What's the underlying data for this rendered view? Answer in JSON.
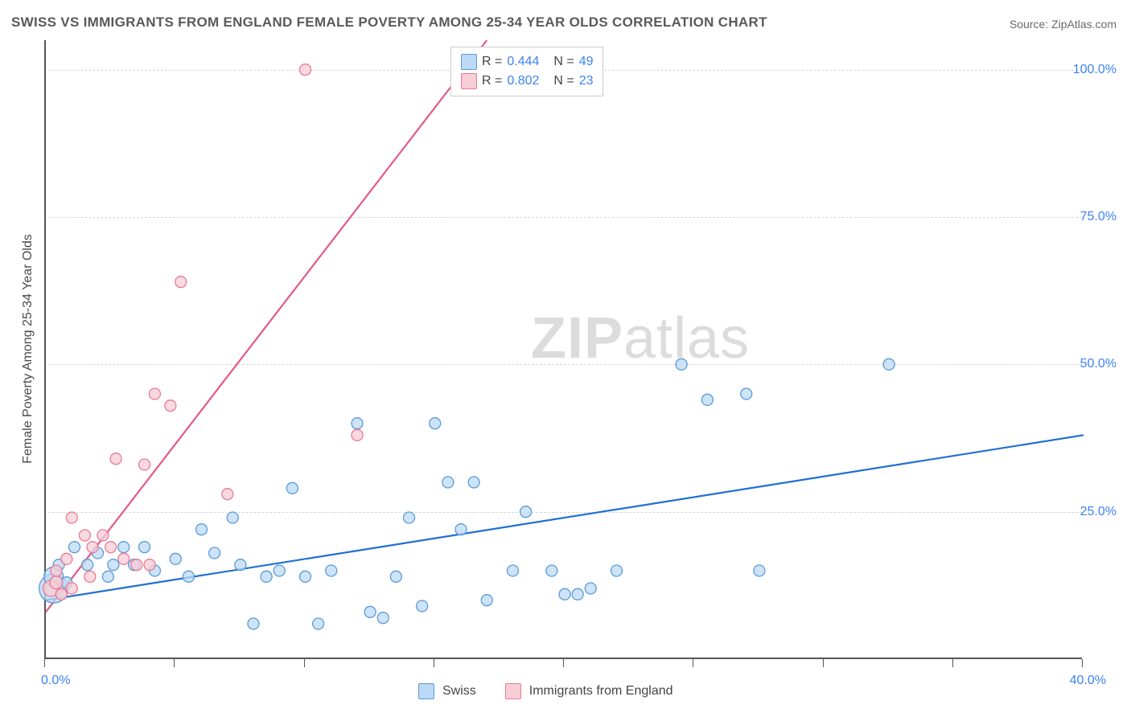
{
  "title": "SWISS VS IMMIGRANTS FROM ENGLAND FEMALE POVERTY AMONG 25-34 YEAR OLDS CORRELATION CHART",
  "source": "Source: ZipAtlas.com",
  "y_axis_label": "Female Poverty Among 25-34 Year Olds",
  "watermark_bold": "ZIP",
  "watermark_light": "atlas",
  "chart": {
    "type": "scatter",
    "xlim": [
      0,
      40
    ],
    "ylim": [
      0,
      105
    ],
    "x_ticks": [
      0,
      5,
      10,
      15,
      20,
      25,
      30,
      35,
      40
    ],
    "x_tick_labels": {
      "0": "0.0%",
      "40": "40.0%"
    },
    "y_ticks": [
      25,
      50,
      75,
      100
    ],
    "y_tick_labels": [
      "25.0%",
      "50.0%",
      "75.0%",
      "100.0%"
    ],
    "background_color": "#ffffff",
    "grid_color": "#d6d6d6",
    "axis_color": "#555555",
    "label_color": "#3b82f6",
    "series": [
      {
        "name": "Swiss",
        "fill": "#bcd9f5",
        "stroke": "#5b9bd5",
        "trend_color": "#1f6fd4",
        "trend": {
          "x1": 0,
          "y1": 10,
          "x2": 40,
          "y2": 38
        },
        "R": "0.444",
        "N": "49",
        "points": [
          {
            "x": 0.3,
            "y": 12,
            "r": 18
          },
          {
            "x": 0.3,
            "y": 14,
            "r": 12
          },
          {
            "x": 0.5,
            "y": 16,
            "r": 7
          },
          {
            "x": 0.8,
            "y": 13,
            "r": 7
          },
          {
            "x": 1.1,
            "y": 19,
            "r": 7
          },
          {
            "x": 1.6,
            "y": 16,
            "r": 7
          },
          {
            "x": 2.0,
            "y": 18,
            "r": 7
          },
          {
            "x": 2.4,
            "y": 14,
            "r": 7
          },
          {
            "x": 2.6,
            "y": 16,
            "r": 7
          },
          {
            "x": 3.0,
            "y": 19,
            "r": 7
          },
          {
            "x": 3.4,
            "y": 16,
            "r": 7
          },
          {
            "x": 3.8,
            "y": 19,
            "r": 7
          },
          {
            "x": 4.2,
            "y": 15,
            "r": 7
          },
          {
            "x": 5.0,
            "y": 17,
            "r": 7
          },
          {
            "x": 5.5,
            "y": 14,
            "r": 7
          },
          {
            "x": 6.0,
            "y": 22,
            "r": 7
          },
          {
            "x": 6.5,
            "y": 18,
            "r": 7
          },
          {
            "x": 7.2,
            "y": 24,
            "r": 7
          },
          {
            "x": 7.5,
            "y": 16,
            "r": 7
          },
          {
            "x": 8.0,
            "y": 6,
            "r": 7
          },
          {
            "x": 8.5,
            "y": 14,
            "r": 7
          },
          {
            "x": 9.0,
            "y": 15,
            "r": 7
          },
          {
            "x": 9.5,
            "y": 29,
            "r": 7
          },
          {
            "x": 10.0,
            "y": 14,
            "r": 7
          },
          {
            "x": 10.5,
            "y": 6,
            "r": 7
          },
          {
            "x": 11.0,
            "y": 15,
            "r": 7
          },
          {
            "x": 12.0,
            "y": 40,
            "r": 7
          },
          {
            "x": 12.5,
            "y": 8,
            "r": 7
          },
          {
            "x": 13.0,
            "y": 7,
            "r": 7
          },
          {
            "x": 13.5,
            "y": 14,
            "r": 7
          },
          {
            "x": 14.0,
            "y": 24,
            "r": 7
          },
          {
            "x": 14.5,
            "y": 9,
            "r": 7
          },
          {
            "x": 15.0,
            "y": 40,
            "r": 7
          },
          {
            "x": 15.5,
            "y": 30,
            "r": 7
          },
          {
            "x": 16.0,
            "y": 22,
            "r": 7
          },
          {
            "x": 16.5,
            "y": 30,
            "r": 7
          },
          {
            "x": 17.0,
            "y": 10,
            "r": 7
          },
          {
            "x": 18.0,
            "y": 15,
            "r": 7
          },
          {
            "x": 18.5,
            "y": 25,
            "r": 7
          },
          {
            "x": 19.5,
            "y": 15,
            "r": 7
          },
          {
            "x": 20.0,
            "y": 11,
            "r": 7
          },
          {
            "x": 20.5,
            "y": 11,
            "r": 7
          },
          {
            "x": 21.0,
            "y": 12,
            "r": 7
          },
          {
            "x": 22.0,
            "y": 15,
            "r": 7
          },
          {
            "x": 24.5,
            "y": 50,
            "r": 7
          },
          {
            "x": 25.5,
            "y": 44,
            "r": 7
          },
          {
            "x": 27.0,
            "y": 45,
            "r": 7
          },
          {
            "x": 27.5,
            "y": 15,
            "r": 7
          },
          {
            "x": 32.5,
            "y": 50,
            "r": 7
          }
        ]
      },
      {
        "name": "Immigrants from England",
        "fill": "#f7cdd6",
        "stroke": "#e97994",
        "trend_color": "#e35a84",
        "trend": {
          "x1": 0,
          "y1": 8,
          "x2": 17,
          "y2": 105
        },
        "R": "0.802",
        "N": "23",
        "points": [
          {
            "x": 0.2,
            "y": 12,
            "r": 10
          },
          {
            "x": 0.4,
            "y": 13,
            "r": 8
          },
          {
            "x": 0.4,
            "y": 15,
            "r": 7
          },
          {
            "x": 0.6,
            "y": 11,
            "r": 7
          },
          {
            "x": 0.8,
            "y": 17,
            "r": 7
          },
          {
            "x": 1.0,
            "y": 12,
            "r": 7
          },
          {
            "x": 1.0,
            "y": 24,
            "r": 7
          },
          {
            "x": 1.5,
            "y": 21,
            "r": 7
          },
          {
            "x": 1.7,
            "y": 14,
            "r": 7
          },
          {
            "x": 1.8,
            "y": 19,
            "r": 7
          },
          {
            "x": 2.2,
            "y": 21,
            "r": 7
          },
          {
            "x": 2.5,
            "y": 19,
            "r": 7
          },
          {
            "x": 2.7,
            "y": 34,
            "r": 7
          },
          {
            "x": 3.0,
            "y": 17,
            "r": 7
          },
          {
            "x": 3.5,
            "y": 16,
            "r": 7
          },
          {
            "x": 3.8,
            "y": 33,
            "r": 7
          },
          {
            "x": 4.0,
            "y": 16,
            "r": 7
          },
          {
            "x": 4.2,
            "y": 45,
            "r": 7
          },
          {
            "x": 4.8,
            "y": 43,
            "r": 7
          },
          {
            "x": 5.2,
            "y": 64,
            "r": 7
          },
          {
            "x": 7.0,
            "y": 28,
            "r": 7
          },
          {
            "x": 10.0,
            "y": 100,
            "r": 7
          },
          {
            "x": 12.0,
            "y": 38,
            "r": 7
          }
        ]
      }
    ]
  },
  "legend_top": {
    "R_label": "R =",
    "N_label": "N ="
  },
  "legend_bottom": {
    "items": [
      "Swiss",
      "Immigrants from England"
    ]
  }
}
